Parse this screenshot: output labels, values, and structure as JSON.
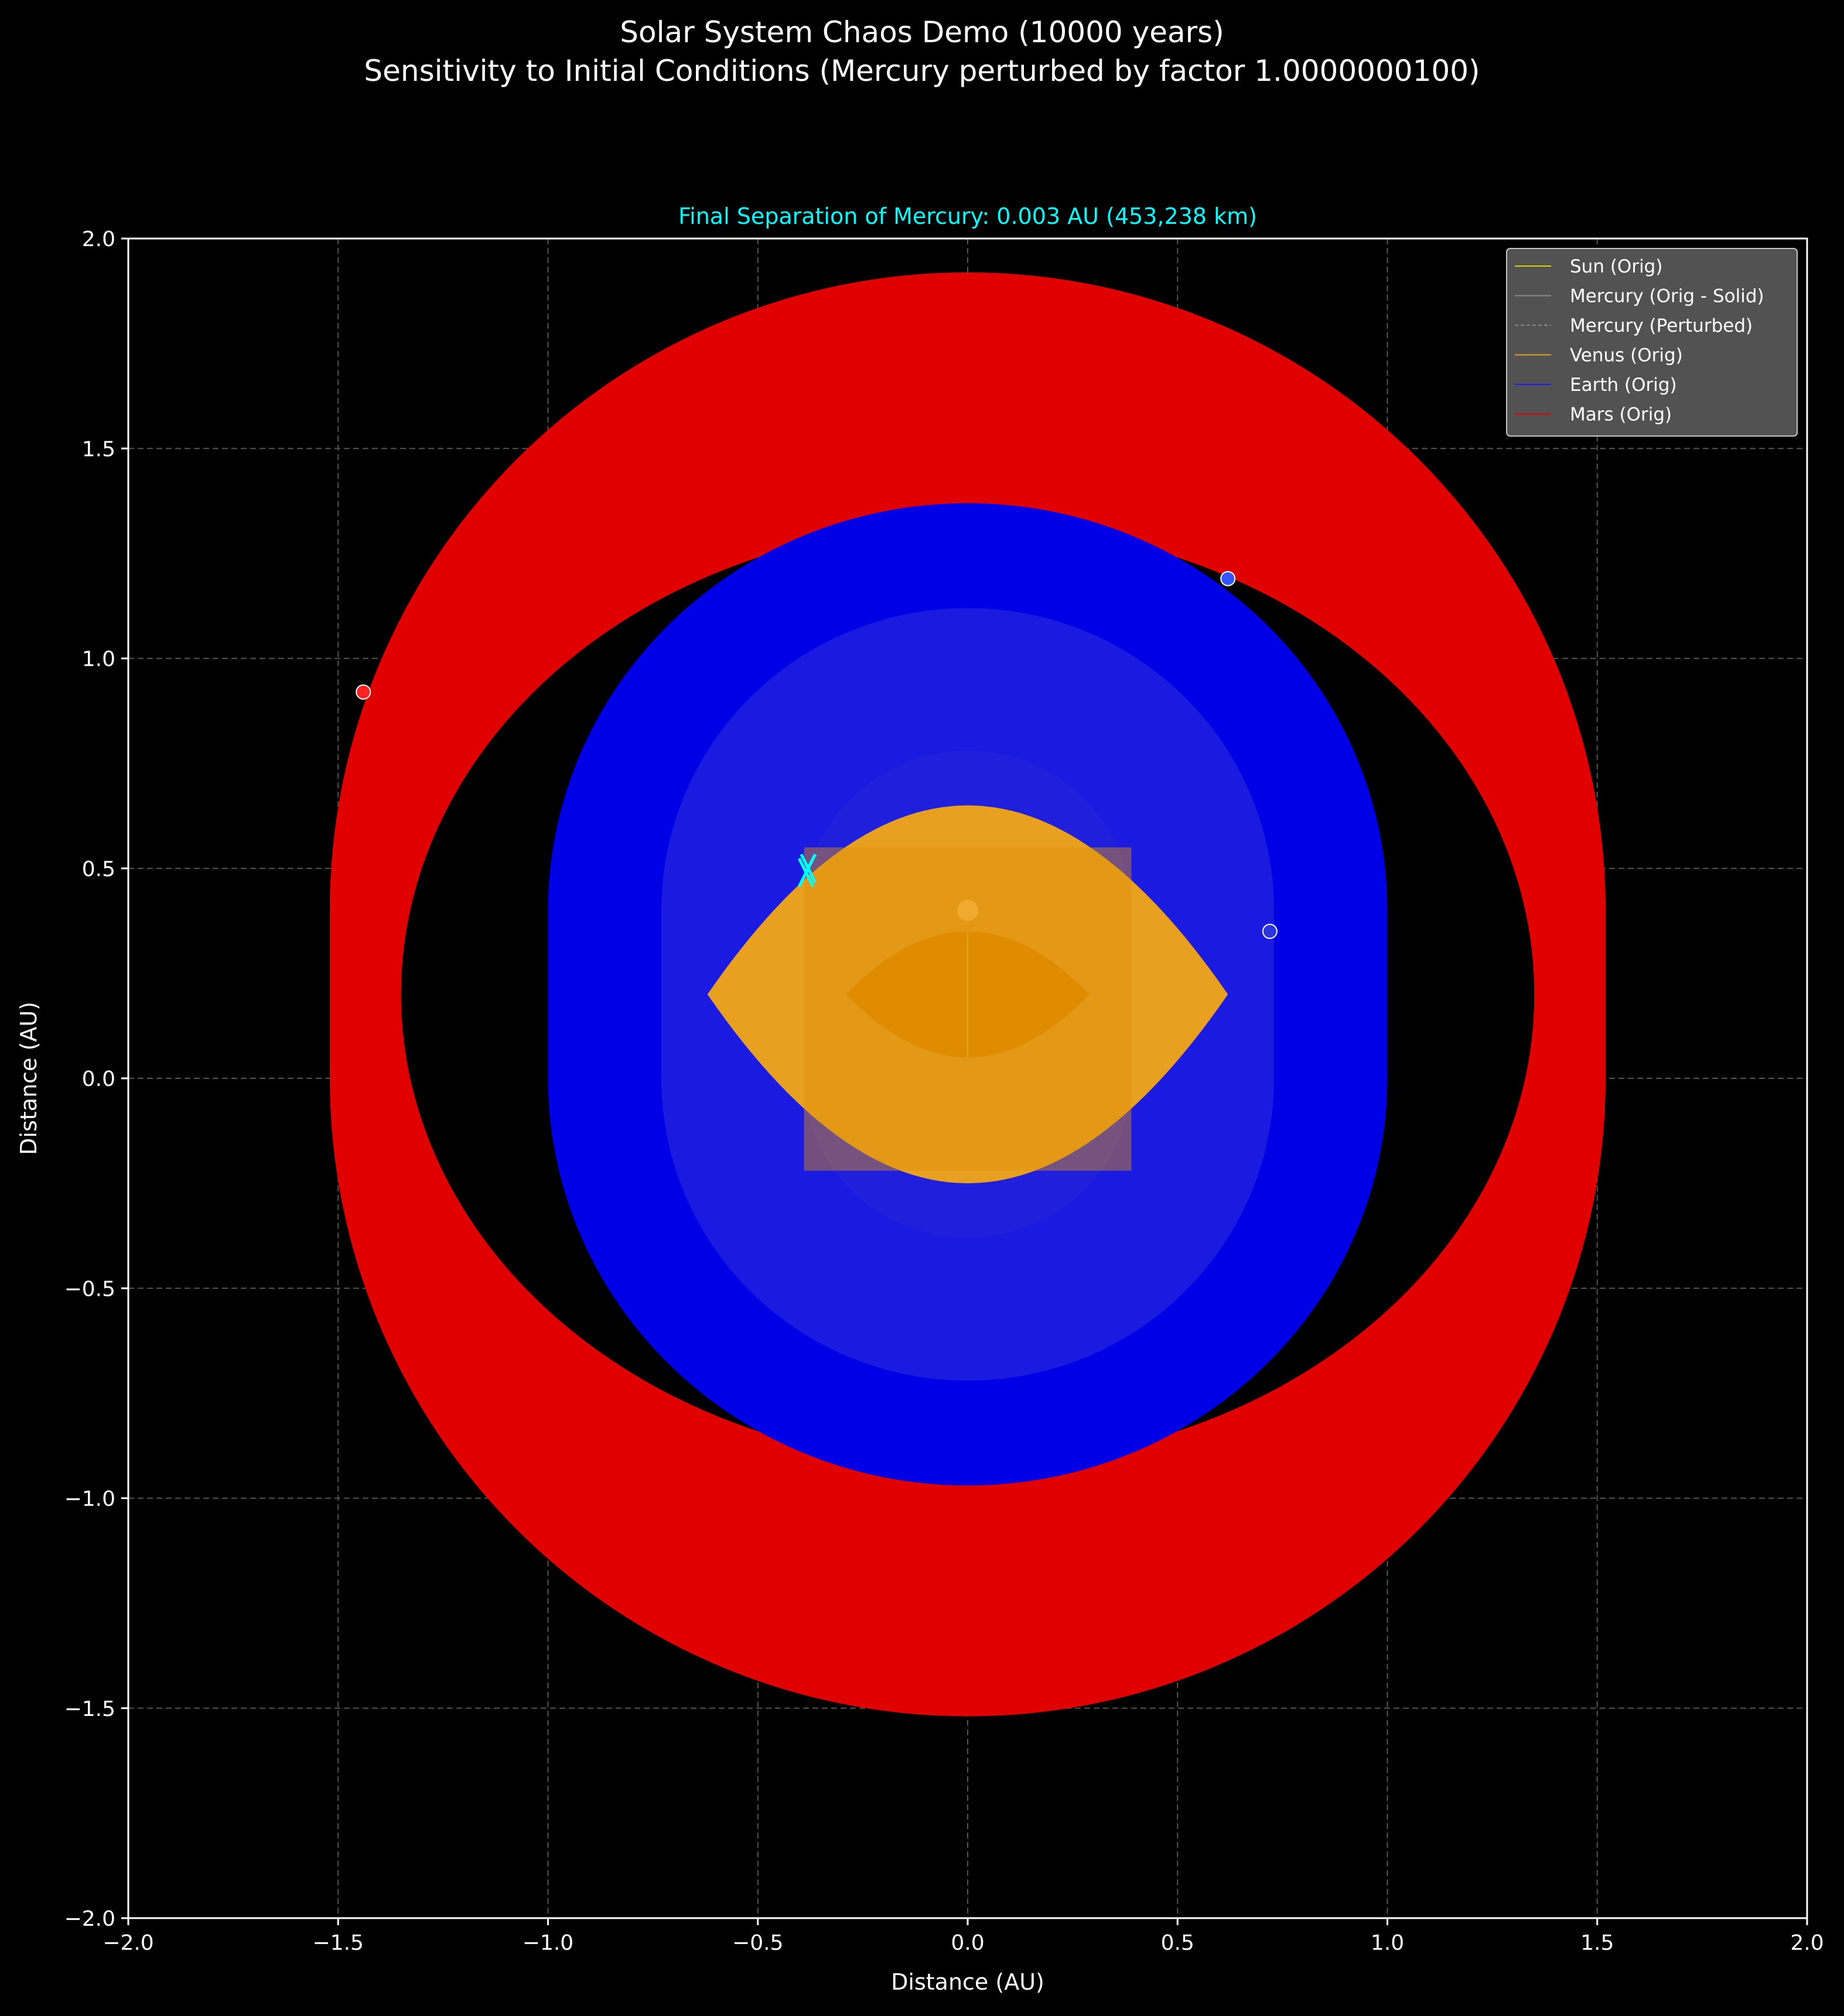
{
  "chart_data": {
    "type": "line",
    "title": "Solar System Chaos Demo (10000 years)",
    "subtitle": "Sensitivity to Initial Conditions (Mercury perturbed by factor 1.0000000100)",
    "axes_title": "Final Separation of Mercury: 0.003 AU (453,238 km)",
    "xlabel": "Distance (AU)",
    "ylabel": "Distance (AU)",
    "xlim": [
      -2.0,
      2.0
    ],
    "ylim": [
      -2.0,
      2.0
    ],
    "xticks": [
      -2.0,
      -1.5,
      -1.0,
      -0.5,
      0.0,
      0.5,
      1.0,
      1.5,
      2.0
    ],
    "yticks": [
      -2.0,
      -1.5,
      -1.0,
      -0.5,
      0.0,
      0.5,
      1.0,
      1.5,
      2.0
    ],
    "xtick_labels": [
      "−2.0",
      "−1.5",
      "−1.0",
      "−0.5",
      "0.0",
      "0.5",
      "1.0",
      "1.5",
      "2.0"
    ],
    "ytick_labels": [
      "−2.0",
      "−1.5",
      "−1.0",
      "−0.5",
      "0.0",
      "0.5",
      "1.0",
      "1.5",
      "2.0"
    ],
    "grid": true,
    "legend_position": "top-right",
    "background": "#000000",
    "title_color": "#ffffff",
    "axes_title_color": "#00ffff",
    "series": [
      {
        "name": "Mars (Orig)",
        "color": "#e00000",
        "kind": "swept-orbit-band",
        "orbit_semi_axes": [
          1.52,
          1.52
        ],
        "center_path": [
          [
            0.0,
            0.4
          ],
          [
            0.0,
            0.0
          ]
        ],
        "inner_semi_axes": [
          1.35,
          1.12
        ],
        "inner_center": [
          0.0,
          0.2
        ]
      },
      {
        "name": "Earth (Orig)",
        "color": "#0000e6",
        "kind": "swept-orbit-band",
        "orbit_semi_axes": [
          1.0,
          0.97
        ],
        "center_path": [
          [
            0.0,
            0.4
          ],
          [
            0.0,
            0.0
          ]
        ]
      },
      {
        "name": "Venus (Orig)",
        "color": "#e8a020",
        "kind": "swept-orbit-band",
        "lens_points": [
          [
            -0.62,
            0.2
          ],
          [
            0.0,
            0.65
          ],
          [
            0.62,
            0.2
          ],
          [
            0.0,
            -0.25
          ]
        ]
      },
      {
        "name": "Mercury (Orig - Solid)",
        "color": "#888888",
        "kind": "swept-orbit-band"
      },
      {
        "name": "Mercury (Perturbed)",
        "color": "#888888",
        "kind": "dashed"
      },
      {
        "name": "Sun (Orig)",
        "color": "#d8d800",
        "kind": "line"
      }
    ],
    "markers": [
      {
        "label": "mars-final",
        "x": -1.44,
        "y": 0.92,
        "color": "#ff2020"
      },
      {
        "label": "earth-final",
        "x": 0.62,
        "y": 1.19,
        "color": "#3355ff"
      },
      {
        "label": "venus-final",
        "x": 0.72,
        "y": 0.35,
        "color": "#2a35e0"
      },
      {
        "label": "sun-final",
        "x": 0.0,
        "y": 0.4,
        "color": "#f0aa30"
      }
    ],
    "separation_marks": [
      {
        "label": "mercury-orig-x",
        "x": -0.385,
        "y": 0.49,
        "color": "#00ffff"
      },
      {
        "label": "mercury-perturbed-x",
        "x": -0.38,
        "y": 0.5,
        "color": "#00ffff"
      }
    ],
    "legend": [
      {
        "name": "Sun (Orig)",
        "color": "#d8d800",
        "style": "solid"
      },
      {
        "name": "Mercury (Orig - Solid)",
        "color": "#888888",
        "style": "solid"
      },
      {
        "name": "Mercury (Perturbed)",
        "color": "#888888",
        "style": "dashed"
      },
      {
        "name": "Venus (Orig)",
        "color": "#e8a020",
        "style": "solid"
      },
      {
        "name": "Earth (Orig)",
        "color": "#1a1aff",
        "style": "solid"
      },
      {
        "name": "Mars (Orig)",
        "color": "#e00000",
        "style": "solid"
      }
    ]
  }
}
